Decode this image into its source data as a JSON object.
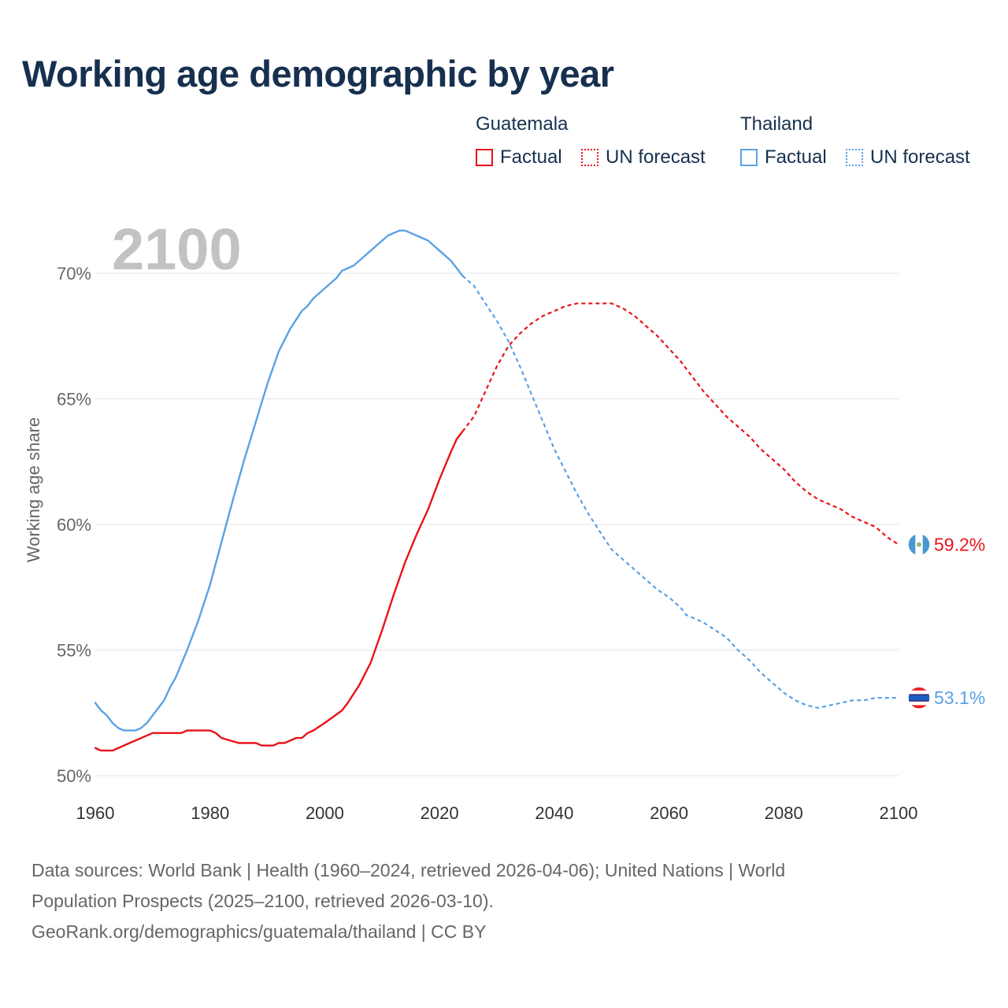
{
  "title": "Working age demographic by year",
  "legend": {
    "groups": [
      {
        "country": "Guatemala",
        "factual": "Factual",
        "forecast": "UN forecast",
        "color": "#e8131a"
      },
      {
        "country": "Thailand",
        "factual": "Factual",
        "forecast": "UN forecast",
        "color": "#5aa2e4"
      }
    ]
  },
  "chart_data": {
    "type": "line",
    "title": "Working age demographic by year",
    "year_watermark": "2100",
    "xlabel": "",
    "ylabel": "Working age share",
    "xlim": [
      1960,
      2100
    ],
    "ylim": [
      50,
      72
    ],
    "x_ticks": [
      "1960",
      "1980",
      "2000",
      "2020",
      "2040",
      "2060",
      "2080",
      "2100"
    ],
    "y_ticks": [
      "50%",
      "55%",
      "60%",
      "65%",
      "70%"
    ],
    "y_tick_values": [
      50,
      55,
      60,
      65,
      70
    ],
    "grid": true,
    "series": [
      {
        "name": "Guatemala",
        "color": "#e8131a",
        "end_label": "59.2%",
        "factual": [
          [
            1960,
            51.1
          ],
          [
            1961,
            51.0
          ],
          [
            1963,
            51.0
          ],
          [
            1966,
            51.3
          ],
          [
            1970,
            51.7
          ],
          [
            1975,
            51.7
          ],
          [
            1976,
            51.8
          ],
          [
            1980,
            51.8
          ],
          [
            1981,
            51.7
          ],
          [
            1982,
            51.5
          ],
          [
            1985,
            51.3
          ],
          [
            1988,
            51.3
          ],
          [
            1989,
            51.2
          ],
          [
            1991,
            51.2
          ],
          [
            1992,
            51.3
          ],
          [
            1993,
            51.3
          ],
          [
            1995,
            51.5
          ],
          [
            1996,
            51.5
          ],
          [
            1997,
            51.7
          ],
          [
            1998,
            51.8
          ],
          [
            2000,
            52.1
          ],
          [
            2003,
            52.6
          ],
          [
            2004,
            52.9
          ],
          [
            2006,
            53.6
          ],
          [
            2008,
            54.5
          ],
          [
            2010,
            55.8
          ],
          [
            2012,
            57.2
          ],
          [
            2014,
            58.5
          ],
          [
            2016,
            59.6
          ],
          [
            2018,
            60.6
          ],
          [
            2020,
            61.8
          ],
          [
            2022,
            62.9
          ],
          [
            2023,
            63.4
          ],
          [
            2024,
            63.7
          ]
        ],
        "forecast": [
          [
            2024,
            63.7
          ],
          [
            2026,
            64.3
          ],
          [
            2028,
            65.3
          ],
          [
            2030,
            66.3
          ],
          [
            2032,
            67.1
          ],
          [
            2034,
            67.6
          ],
          [
            2036,
            68.0
          ],
          [
            2038,
            68.3
          ],
          [
            2040,
            68.5
          ],
          [
            2042,
            68.7
          ],
          [
            2044,
            68.8
          ],
          [
            2050,
            68.8
          ],
          [
            2052,
            68.6
          ],
          [
            2054,
            68.3
          ],
          [
            2056,
            67.9
          ],
          [
            2058,
            67.5
          ],
          [
            2060,
            67.0
          ],
          [
            2062,
            66.5
          ],
          [
            2064,
            65.9
          ],
          [
            2066,
            65.3
          ],
          [
            2068,
            64.8
          ],
          [
            2070,
            64.3
          ],
          [
            2072,
            63.9
          ],
          [
            2074,
            63.5
          ],
          [
            2076,
            63.0
          ],
          [
            2078,
            62.6
          ],
          [
            2080,
            62.2
          ],
          [
            2082,
            61.7
          ],
          [
            2084,
            61.3
          ],
          [
            2086,
            61.0
          ],
          [
            2088,
            60.8
          ],
          [
            2090,
            60.6
          ],
          [
            2092,
            60.3
          ],
          [
            2094,
            60.1
          ],
          [
            2096,
            59.9
          ],
          [
            2098,
            59.5
          ],
          [
            2100,
            59.2
          ]
        ]
      },
      {
        "name": "Thailand",
        "color": "#5aa2e4",
        "end_label": "53.1%",
        "factual": [
          [
            1960,
            52.9
          ],
          [
            1961,
            52.6
          ],
          [
            1962,
            52.4
          ],
          [
            1963,
            52.1
          ],
          [
            1964,
            51.9
          ],
          [
            1965,
            51.8
          ],
          [
            1967,
            51.8
          ],
          [
            1968,
            51.9
          ],
          [
            1969,
            52.1
          ],
          [
            1970,
            52.4
          ],
          [
            1972,
            53.0
          ],
          [
            1973,
            53.5
          ],
          [
            1974,
            53.9
          ],
          [
            1976,
            55.0
          ],
          [
            1978,
            56.2
          ],
          [
            1980,
            57.6
          ],
          [
            1982,
            59.3
          ],
          [
            1984,
            61.0
          ],
          [
            1986,
            62.6
          ],
          [
            1988,
            64.1
          ],
          [
            1990,
            65.6
          ],
          [
            1992,
            66.9
          ],
          [
            1994,
            67.8
          ],
          [
            1996,
            68.5
          ],
          [
            1997,
            68.7
          ],
          [
            1998,
            69.0
          ],
          [
            2000,
            69.4
          ],
          [
            2002,
            69.8
          ],
          [
            2003,
            70.1
          ],
          [
            2005,
            70.3
          ],
          [
            2006,
            70.5
          ],
          [
            2008,
            70.9
          ],
          [
            2010,
            71.3
          ],
          [
            2011,
            71.5
          ],
          [
            2013,
            71.7
          ],
          [
            2014,
            71.7
          ],
          [
            2016,
            71.5
          ],
          [
            2018,
            71.3
          ],
          [
            2020,
            70.9
          ],
          [
            2022,
            70.5
          ],
          [
            2024,
            69.9
          ]
        ],
        "forecast": [
          [
            2024,
            69.9
          ],
          [
            2026,
            69.5
          ],
          [
            2028,
            68.8
          ],
          [
            2030,
            68.1
          ],
          [
            2032,
            67.3
          ],
          [
            2034,
            66.3
          ],
          [
            2036,
            65.2
          ],
          [
            2038,
            64.1
          ],
          [
            2040,
            63.0
          ],
          [
            2042,
            62.1
          ],
          [
            2044,
            61.2
          ],
          [
            2046,
            60.4
          ],
          [
            2048,
            59.7
          ],
          [
            2050,
            59.0
          ],
          [
            2052,
            58.6
          ],
          [
            2054,
            58.2
          ],
          [
            2056,
            57.8
          ],
          [
            2058,
            57.4
          ],
          [
            2060,
            57.1
          ],
          [
            2062,
            56.7
          ],
          [
            2063,
            56.4
          ],
          [
            2066,
            56.1
          ],
          [
            2068,
            55.8
          ],
          [
            2070,
            55.5
          ],
          [
            2072,
            55.0
          ],
          [
            2074,
            54.6
          ],
          [
            2076,
            54.1
          ],
          [
            2078,
            53.7
          ],
          [
            2080,
            53.3
          ],
          [
            2082,
            53.0
          ],
          [
            2084,
            52.8
          ],
          [
            2086,
            52.7
          ],
          [
            2088,
            52.8
          ],
          [
            2090,
            52.9
          ],
          [
            2092,
            53.0
          ],
          [
            2094,
            53.0
          ],
          [
            2096,
            53.1
          ],
          [
            2100,
            53.1
          ]
        ]
      }
    ]
  },
  "footer": {
    "line1": "Data sources: World Bank | Health (1960–2024, retrieved 2026-04-06); United Nations | World",
    "line2": "Population Prospects (2025–2100, retrieved 2026-03-10).",
    "line3": "GeoRank.org/demographics/guatemala/thailand | CC BY"
  }
}
